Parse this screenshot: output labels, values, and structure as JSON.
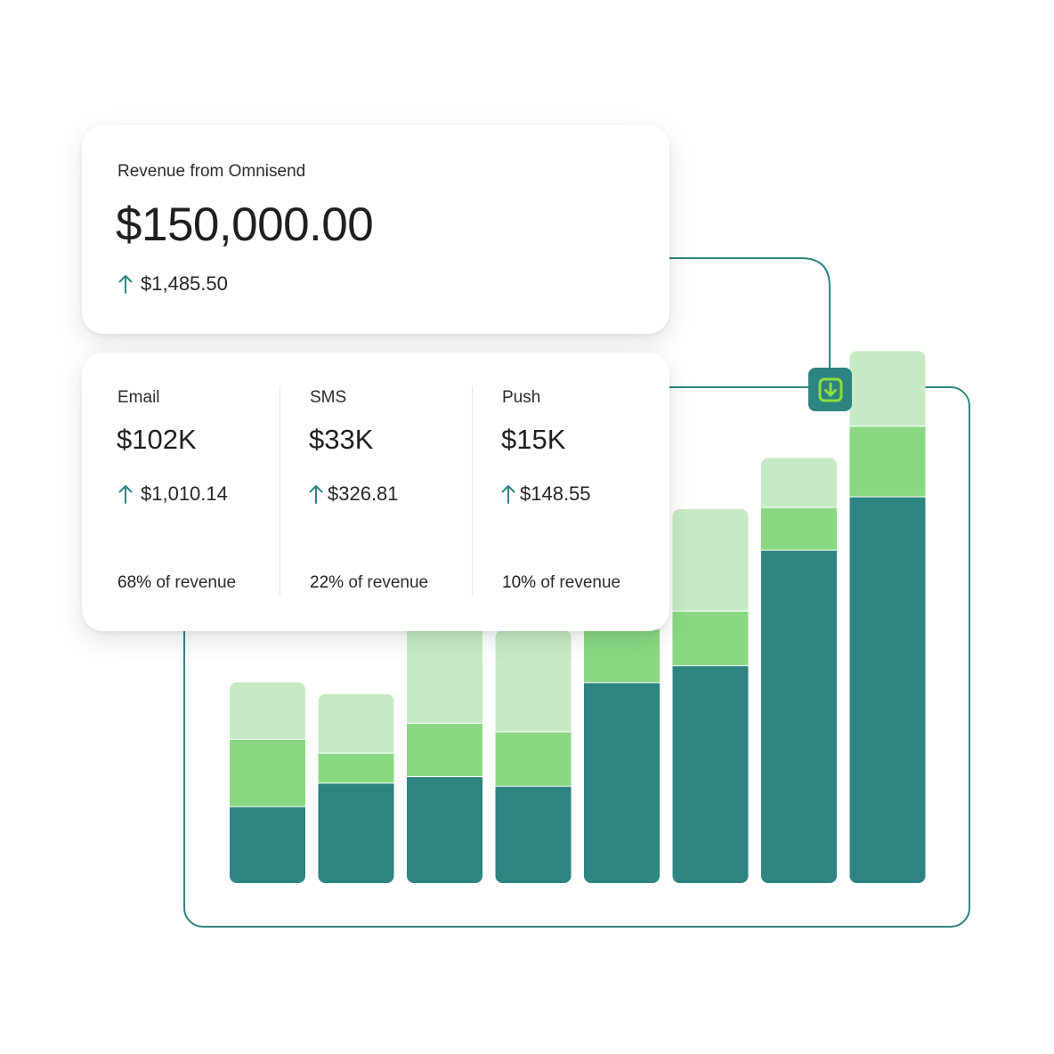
{
  "summary": {
    "label": "Revenue from Omnisend",
    "amount": "$150,000.00",
    "change": "$1,485.50",
    "change_icon": "arrow-up-icon"
  },
  "channels": [
    {
      "name": "Email",
      "amount": "$102K",
      "change": "$1,010.14",
      "share_value": "68%",
      "share_suffix": "of revenue"
    },
    {
      "name": "SMS",
      "amount": "$33K",
      "change": "$326.81",
      "share_value": "22%",
      "share_suffix": "of revenue"
    },
    {
      "name": "Push",
      "amount": "$15K",
      "change": "$148.55",
      "share_value": "10%",
      "share_suffix": "of revenue"
    }
  ],
  "actions": {
    "download_icon": "download-icon"
  },
  "colors": {
    "email": "#2e8481",
    "sms": "#8ad982",
    "push": "#c6ebc4",
    "accent_green": "#8ce03c",
    "frame": "#2e8481"
  },
  "chart_data": {
    "type": "bar",
    "stacked": true,
    "categories": [
      "",
      "",
      "",
      "",
      "",
      "",
      "",
      ""
    ],
    "series": [
      {
        "key": "email",
        "values": [
          72,
          94,
          100,
          91,
          188,
          204,
          312,
          362
        ]
      },
      {
        "key": "sms",
        "values": [
          63,
          28,
          50,
          51,
          50,
          51,
          40,
          66
        ]
      },
      {
        "key": "push",
        "values": [
          53,
          55,
          94,
          95,
          56,
          95,
          46,
          70
        ]
      }
    ],
    "ylim": [
      0,
      500
    ],
    "grid": false,
    "legend": "none"
  }
}
